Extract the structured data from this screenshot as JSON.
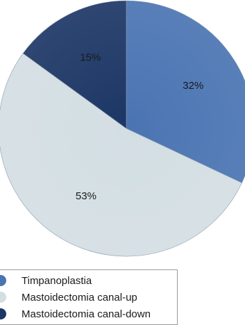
{
  "chart_data": {
    "type": "pie",
    "start_angle_deg": 0,
    "direction": "clockwise",
    "slices": [
      {
        "name": "Timpanoplastia",
        "value": 32,
        "label": "32%",
        "color": "#4a74b2"
      },
      {
        "name": "Mastoidectomia canal-up",
        "value": 53,
        "label": "53%",
        "color": "#d3dee3"
      },
      {
        "name": "Mastoidectomia canal-down",
        "value": 15,
        "label": "15%",
        "color": "#1c3665"
      }
    ],
    "legend": {
      "placement": "bottom-left",
      "entries": [
        "Timpanoplastia",
        "Mastoidectomia canal-up",
        "Mastoidectomia canal-down"
      ]
    }
  }
}
